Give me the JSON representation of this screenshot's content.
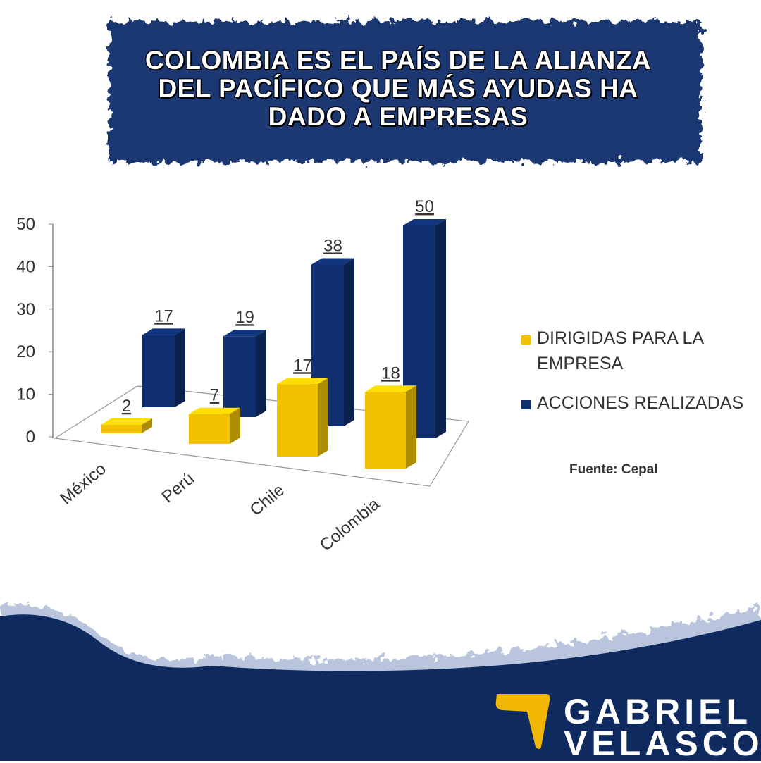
{
  "chart_data": {
    "type": "bar3d",
    "title": "COLOMBIA ES EL PAÍS DE LA ALIANZA DEL PACÍFICO QUE MÁS AYUDAS HA DADO A EMPRESAS",
    "categories": [
      "México",
      "Perú",
      "Chile",
      "Colombia"
    ],
    "series": [
      {
        "name": "DIRIGIDAS PARA LA EMPRESA",
        "color": "#f2c200",
        "values": [
          2,
          7,
          17,
          18
        ]
      },
      {
        "name": "ACCIONES REALIZADAS",
        "color": "#0f2f6e",
        "values": [
          17,
          19,
          38,
          50
        ]
      }
    ],
    "ylim": [
      0,
      50
    ],
    "yticks": [
      0,
      10,
      20,
      30,
      40,
      50
    ],
    "legend": "right",
    "source": "Fuente: Cepal"
  },
  "brand": [
    "GABRIEL",
    "VELASCO"
  ]
}
